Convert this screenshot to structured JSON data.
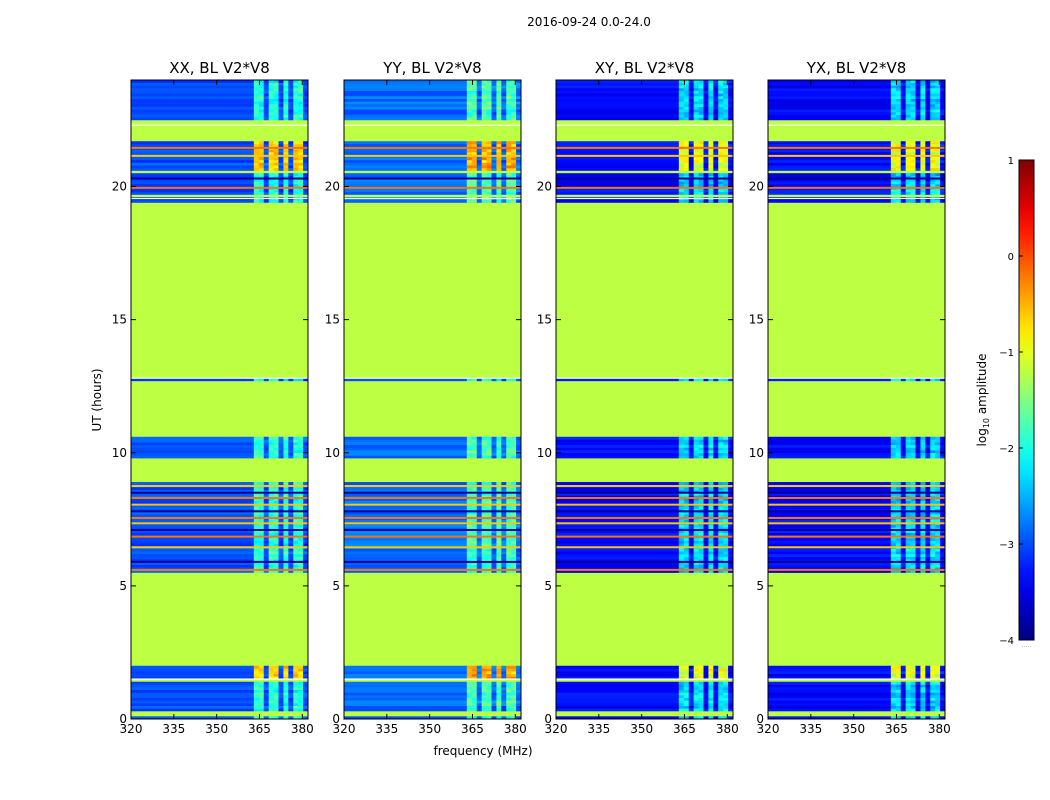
{
  "figure": {
    "suptitle": "2016-09-24 0.0-24.0",
    "xlabel": "frequency (MHz)",
    "ylabel": "UT (hours)"
  },
  "colorbar": {
    "label_prefix": "log",
    "label_sub": "10",
    "label_suffix": " amplitude",
    "ticks": [
      1,
      0,
      -1,
      -2,
      -3,
      -4
    ],
    "tick_labels": [
      "1",
      "0",
      "−1",
      "−2",
      "−3",
      "−4"
    ],
    "vmin": -4,
    "vmax": 1,
    "colormap": "jet",
    "under_marker": "....."
  },
  "colors": {
    "masked_green": "#9dfb5a",
    "low_blue": "#1040ff",
    "axis": "#000000"
  },
  "chart_data": {
    "type": "heatmap",
    "title": "2016-09-24 0.0-24.0",
    "xlabel": "frequency (MHz)",
    "ylabel": "UT (hours)",
    "xlim": [
      320,
      382
    ],
    "ylim": [
      0,
      24
    ],
    "xticks": [
      320,
      335,
      350,
      365,
      380
    ],
    "yticks": [
      0,
      5,
      10,
      15,
      20
    ],
    "panels": [
      {
        "title": "XX, BL V2*V8",
        "pol": "XX",
        "base_log_amp": -3.0,
        "cross": false
      },
      {
        "title": "YY, BL V2*V8",
        "pol": "YY",
        "base_log_amp": -2.85,
        "cross": false
      },
      {
        "title": "XY, BL V2*V8",
        "pol": "XY",
        "base_log_amp": -3.35,
        "cross": true
      },
      {
        "title": "YX, BL V2*V8",
        "pol": "YX",
        "base_log_amp": -3.35,
        "cross": true
      }
    ],
    "masked_log_amp": -1.2,
    "rfi_freq_bands_mhz": [
      [
        363.5,
        367.0
      ],
      [
        368.5,
        371.5
      ],
      [
        373.0,
        375.5
      ],
      [
        376.5,
        379.5
      ]
    ],
    "data_hours": [
      [
        0.0,
        0.15
      ],
      [
        0.3,
        1.45
      ],
      [
        1.55,
        2.0
      ],
      [
        5.55,
        6.5
      ],
      [
        6.55,
        8.9
      ],
      [
        9.8,
        10.65
      ],
      [
        12.75,
        12.85
      ],
      [
        19.45,
        19.6
      ],
      [
        19.75,
        20.55
      ],
      [
        20.65,
        21.7
      ],
      [
        22.5,
        24.0
      ]
    ],
    "masked_hours": [
      [
        0.15,
        0.3
      ],
      [
        1.45,
        1.55
      ],
      [
        2.0,
        5.55
      ],
      [
        6.5,
        6.55
      ],
      [
        8.9,
        9.8
      ],
      [
        10.65,
        12.75
      ],
      [
        12.85,
        19.45
      ],
      [
        19.6,
        19.75
      ],
      [
        20.55,
        20.65
      ],
      [
        21.7,
        22.5
      ]
    ],
    "warm_hours": [
      [
        1.55,
        2.0
      ],
      [
        20.55,
        21.7
      ]
    ],
    "stripe_hours": [
      5.6,
      5.9,
      6.45,
      6.85,
      7.1,
      7.35,
      7.55,
      7.8,
      8.05,
      8.3,
      8.5,
      8.75,
      19.95,
      20.3,
      21.15,
      21.45
    ],
    "white_line_hours": [
      1.5,
      12.8,
      19.55,
      22.3
    ]
  }
}
